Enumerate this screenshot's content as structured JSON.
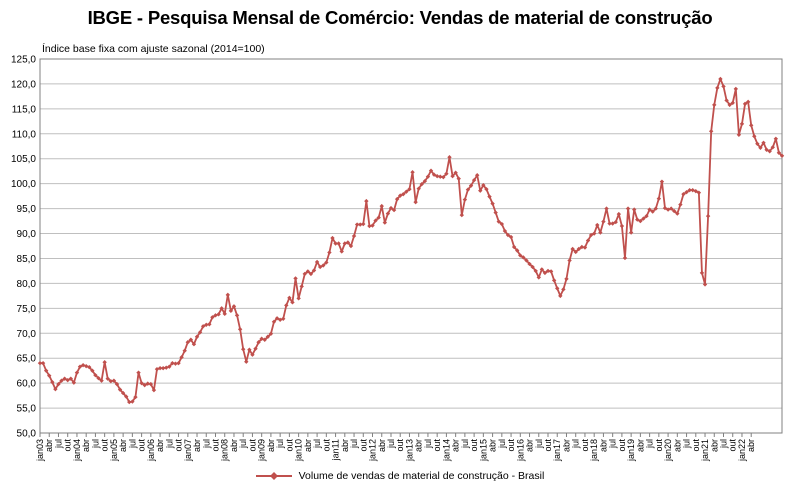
{
  "chart_data": {
    "type": "line",
    "title": "IBGE - Pesquisa Mensal de Comércio: Vendas de material de construção",
    "ylabel": "Índice base fixa com ajuste sazonal (2014=100)",
    "ylim": [
      50,
      125
    ],
    "y_ticks": [
      "50,0",
      "55,0",
      "60,0",
      "65,0",
      "70,0",
      "75,0",
      "80,0",
      "85,0",
      "90,0",
      "95,0",
      "100,0",
      "105,0",
      "110,0",
      "115,0",
      "120,0",
      "125,0"
    ],
    "grid": true,
    "legend_position": "bottom",
    "color": "#c0504d",
    "series": [
      {
        "name": "Volume de vendas de material de construção - Brasil",
        "start": "2003-01",
        "values": [
          64,
          64,
          62.5,
          61.5,
          60.2,
          58.8,
          59.8,
          60.5,
          60.9,
          60.6,
          60.9,
          60.1,
          62.1,
          63.3,
          63.6,
          63.4,
          63.2,
          62.5,
          61.6,
          61.0,
          60.5,
          64.2,
          60.9,
          60.4,
          60.5,
          59.8,
          58.7,
          58.0,
          57.3,
          56.2,
          56.3,
          57.2,
          62.1,
          60.0,
          59.6,
          59.9,
          59.8,
          58.6,
          62.8,
          63.0,
          63.0,
          63.1,
          63.3,
          64.0,
          63.9,
          64.0,
          65.2,
          66.5,
          68.2,
          68.7,
          67.8,
          69.3,
          70.2,
          71.4,
          71.7,
          71.8,
          73.2,
          73.6,
          73.8,
          75.0,
          73.9,
          77.7,
          74.5,
          75.4,
          73.6,
          70.8,
          66.8,
          64.3,
          66.7,
          65.7,
          66.9,
          68.2,
          68.9,
          68.7,
          69.3,
          69.9,
          72.3,
          73.0,
          72.7,
          72.9,
          75.6,
          77.1,
          76.2,
          81.0,
          77.0,
          79.4,
          81.9,
          82.4,
          81.9,
          82.6,
          84.3,
          83.3,
          83.6,
          84.2,
          86.2,
          89.1,
          88.0,
          88.0,
          86.4,
          88.0,
          88.2,
          87.5,
          89.5,
          91.8,
          91.8,
          91.9,
          96.5,
          91.5,
          91.6,
          92.6,
          93.2,
          95.5,
          92.2,
          94.0,
          95.1,
          94.7,
          96.9,
          97.6,
          97.9,
          98.4,
          98.9,
          102.3,
          96.3,
          99.0,
          99.9,
          100.5,
          101.4,
          102.6,
          101.8,
          101.5,
          101.4,
          101.3,
          102.0,
          105.3,
          101.5,
          102.2,
          101.0,
          93.7,
          96.8,
          98.8,
          99.6,
          100.7,
          101.7,
          98.6,
          99.7,
          98.9,
          97.4,
          96.0,
          94.2,
          92.4,
          91.9,
          90.5,
          89.7,
          89.3,
          87.3,
          86.6,
          85.6,
          85.2,
          84.6,
          83.9,
          83.3,
          82.5,
          81.2,
          82.8,
          82.1,
          82.5,
          82.4,
          80.6,
          79.0,
          77.5,
          78.8,
          80.9,
          84.6,
          86.9,
          86.3,
          86.9,
          87.3,
          87.2,
          88.6,
          89.7,
          90.0,
          91.7,
          90.2,
          92.4,
          95.0,
          92.0,
          92.0,
          92.3,
          93.9,
          91.5,
          85.1,
          95.0,
          90.2,
          94.8,
          92.8,
          92.5,
          93.0,
          93.5,
          94.8,
          94.4,
          95.0,
          97.0,
          100.4,
          95.1,
          94.8,
          95.0,
          94.5,
          94.0,
          95.8,
          97.9,
          98.3,
          98.7,
          98.7,
          98.5,
          98.2,
          82.1,
          79.8,
          93.5,
          110.5,
          115.8,
          119.2,
          121.0,
          119.5,
          116.7,
          115.8,
          116.2,
          119.0,
          109.8,
          112.0,
          116.0,
          116.4,
          111.7,
          109.5,
          108.0,
          107.2,
          108.2,
          106.8,
          106.5,
          107.3,
          109.0,
          106.2,
          105.6
        ]
      }
    ],
    "x_tick_labels": [
      "jan03",
      "abr",
      "jul",
      "out",
      "jan04",
      "abr",
      "jul",
      "out",
      "jan05",
      "abr",
      "jul",
      "out",
      "jan06",
      "abr",
      "jul",
      "out",
      "jan07",
      "abr",
      "jul",
      "out",
      "jan08",
      "abr",
      "jul",
      "out",
      "jan09",
      "abr",
      "jul",
      "out",
      "jan10",
      "abr",
      "jul",
      "out",
      "jan11",
      "abr",
      "jul",
      "out",
      "jan12",
      "abr",
      "jul",
      "out",
      "jan13",
      "abr",
      "jul",
      "out",
      "jan14",
      "abr",
      "jul",
      "out",
      "jan15",
      "abr",
      "jul",
      "out",
      "jan16",
      "abr",
      "jul",
      "out",
      "jan17",
      "abr",
      "jul",
      "out",
      "jan18",
      "abr",
      "jul",
      "out",
      "jan19",
      "abr",
      "jul",
      "out",
      "jan20",
      "abr",
      "jul",
      "out",
      "jan21",
      "abr",
      "jul",
      "out",
      "jan22",
      "abr"
    ]
  }
}
